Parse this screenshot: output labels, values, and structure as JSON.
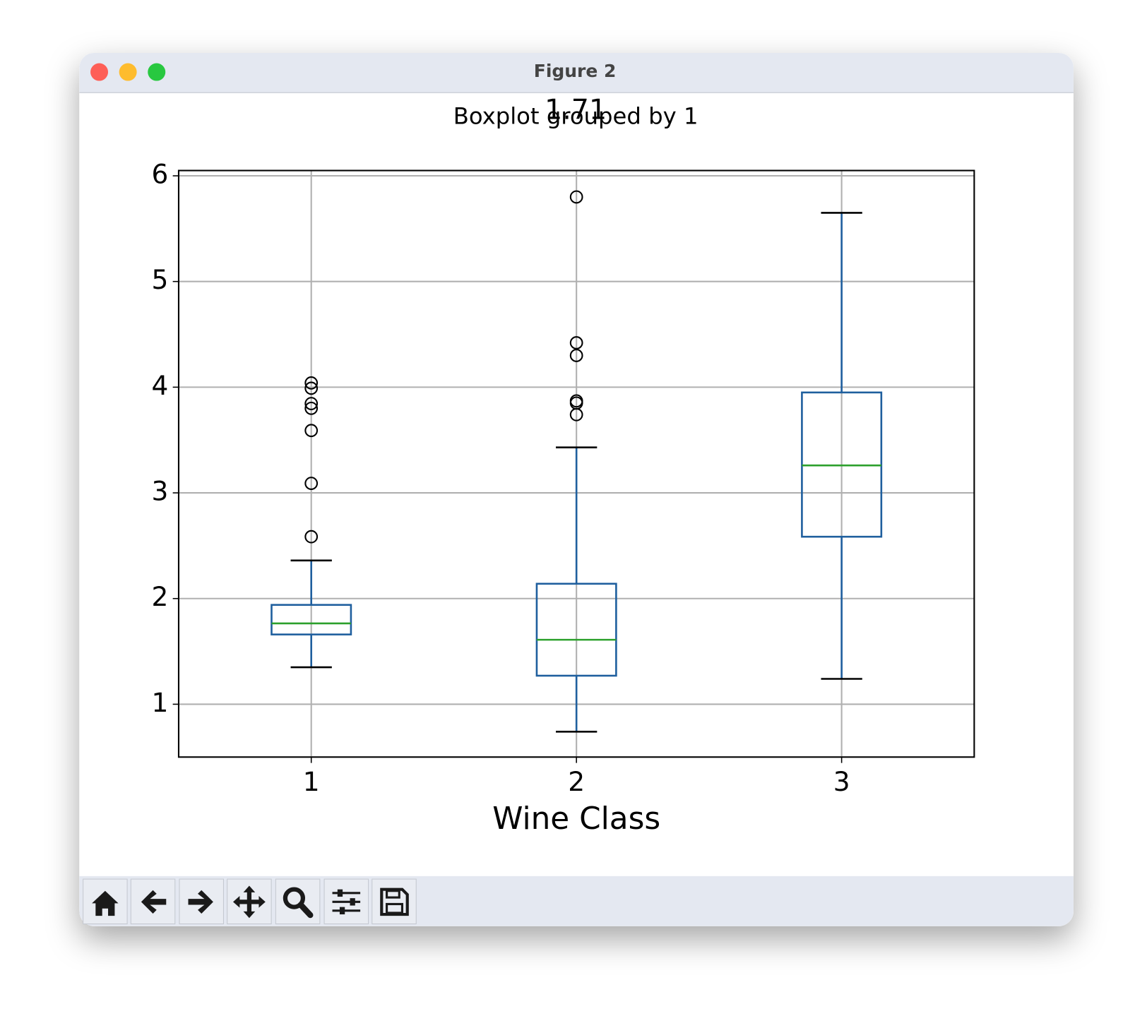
{
  "window": {
    "title": "Figure 2"
  },
  "chart_data": {
    "type": "box",
    "suptitle": "Boxplot grouped by 1",
    "title": "1.71",
    "x_label": "Wine Class",
    "categories": [
      "1",
      "2",
      "3"
    ],
    "boxes": [
      {
        "whislo": 1.35,
        "q1": 1.66,
        "med": 1.765,
        "q3": 1.94,
        "whishi": 2.36,
        "fliers": [
          2.585,
          3.09,
          3.59,
          3.8,
          3.845,
          3.99,
          4.04
        ]
      },
      {
        "whislo": 0.74,
        "q1": 1.27,
        "med": 1.61,
        "q3": 2.14,
        "whishi": 3.43,
        "fliers": [
          3.74,
          3.85,
          3.87,
          4.3,
          4.42,
          5.8
        ]
      },
      {
        "whislo": 1.24,
        "q1": 2.585,
        "med": 3.26,
        "q3": 3.95,
        "whishi": 5.65,
        "fliers": []
      }
    ],
    "box_color": "#1f5f9e",
    "median_color": "#2ca02c",
    "whisker_cap_color": "#000000",
    "ylim": [
      0.5,
      6.05
    ],
    "yticks": [
      1,
      2,
      3,
      4,
      5,
      6
    ],
    "grid": true
  }
}
